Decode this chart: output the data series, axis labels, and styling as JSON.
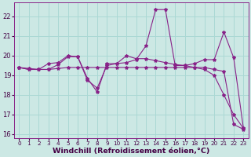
{
  "xlabel": "Windchill (Refroidissement éolien,°C)",
  "bg_color": "#cce8e4",
  "grid_color": "#aad8d4",
  "line_color": "#882288",
  "xlim_min": -0.5,
  "xlim_max": 23.5,
  "ylim_min": 15.8,
  "ylim_max": 22.7,
  "xticks": [
    0,
    1,
    2,
    3,
    4,
    5,
    6,
    7,
    8,
    9,
    10,
    11,
    12,
    13,
    14,
    15,
    16,
    17,
    18,
    19,
    20,
    21,
    22,
    23
  ],
  "yticks": [
    16,
    17,
    18,
    19,
    20,
    21,
    22
  ],
  "tick_fontsize": 6,
  "xtick_fontsize": 5.2,
  "label_fontsize": 6.8,
  "series": [
    {
      "x": [
        0,
        1,
        2,
        3,
        4,
        5,
        6,
        7,
        8,
        9,
        10,
        11,
        12,
        13,
        14,
        15,
        16,
        17,
        18,
        19,
        20,
        21,
        22,
        23
      ],
      "y": [
        19.4,
        19.35,
        19.3,
        19.3,
        19.35,
        19.4,
        19.4,
        19.4,
        19.4,
        19.4,
        19.4,
        19.4,
        19.4,
        19.4,
        19.4,
        19.4,
        19.4,
        19.4,
        19.4,
        19.4,
        19.3,
        19.2,
        16.5,
        16.25
      ]
    },
    {
      "x": [
        0,
        1,
        2,
        3,
        4,
        5,
        6,
        7,
        8,
        9,
        10,
        11,
        12,
        13,
        14,
        15,
        16,
        17,
        18,
        19,
        20,
        21,
        22,
        23
      ],
      "y": [
        19.4,
        19.3,
        19.3,
        19.6,
        19.65,
        20.0,
        19.95,
        18.85,
        18.15,
        19.6,
        19.6,
        19.65,
        19.8,
        20.5,
        22.35,
        22.35,
        19.5,
        19.5,
        19.6,
        19.8,
        19.8,
        21.2,
        19.9,
        16.3
      ]
    },
    {
      "x": [
        0,
        1,
        2,
        3,
        4,
        5,
        6,
        7,
        8,
        9,
        10,
        11,
        12,
        13,
        14,
        15,
        16,
        17,
        18,
        19,
        20,
        21,
        22,
        23
      ],
      "y": [
        19.4,
        19.3,
        19.3,
        19.3,
        19.55,
        19.95,
        19.95,
        18.75,
        18.35,
        19.5,
        19.6,
        20.0,
        19.85,
        19.85,
        19.75,
        19.65,
        19.55,
        19.5,
        19.4,
        19.3,
        19.0,
        18.0,
        17.0,
        16.3
      ]
    }
  ]
}
